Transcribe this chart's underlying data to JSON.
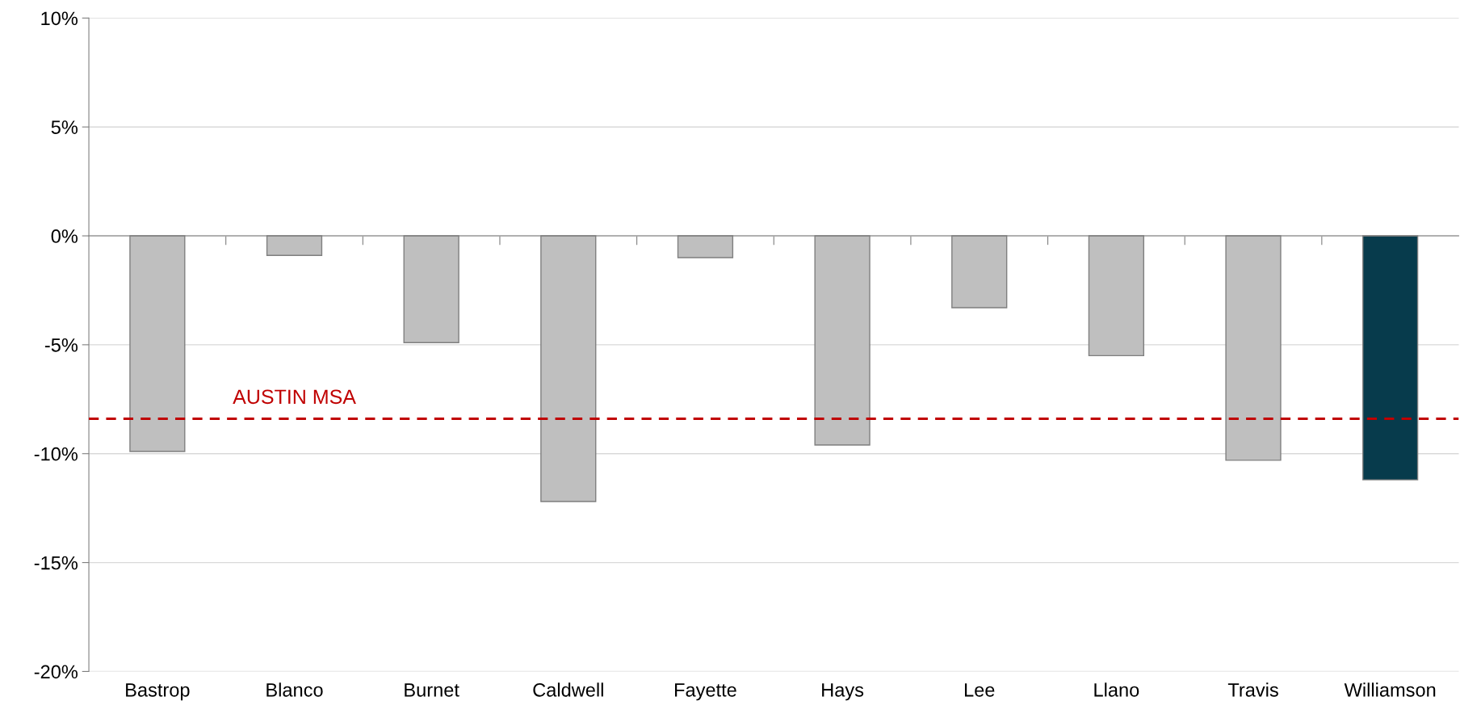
{
  "chart_data": {
    "type": "bar",
    "categories": [
      "Bastrop",
      "Blanco",
      "Burnet",
      "Caldwell",
      "Fayette",
      "Hays",
      "Lee",
      "Llano",
      "Travis",
      "Williamson"
    ],
    "values": [
      -9.9,
      -0.9,
      -4.9,
      -12.2,
      -1.0,
      -9.6,
      -3.3,
      -5.5,
      -10.3,
      -11.2
    ],
    "colors": [
      "#bfbfbf",
      "#bfbfbf",
      "#bfbfbf",
      "#bfbfbf",
      "#bfbfbf",
      "#bfbfbf",
      "#bfbfbf",
      "#bfbfbf",
      "#bfbfbf",
      "#073b4c"
    ],
    "ylim": [
      -20,
      10
    ],
    "yticks": [
      {
        "value": 10,
        "label": "10%"
      },
      {
        "value": 5,
        "label": "5%"
      },
      {
        "value": 0,
        "label": "0%"
      },
      {
        "value": -5,
        "label": "-5%"
      },
      {
        "value": -10,
        "label": "-10%"
      },
      {
        "value": -15,
        "label": "-15%"
      },
      {
        "value": -20,
        "label": "-20%"
      }
    ],
    "grid": "y",
    "ref_lines": [
      {
        "axis": "y",
        "value": -8.4,
        "label": "AUSTIN MSA",
        "color": "#c00000",
        "line_style": "dashed"
      }
    ]
  }
}
